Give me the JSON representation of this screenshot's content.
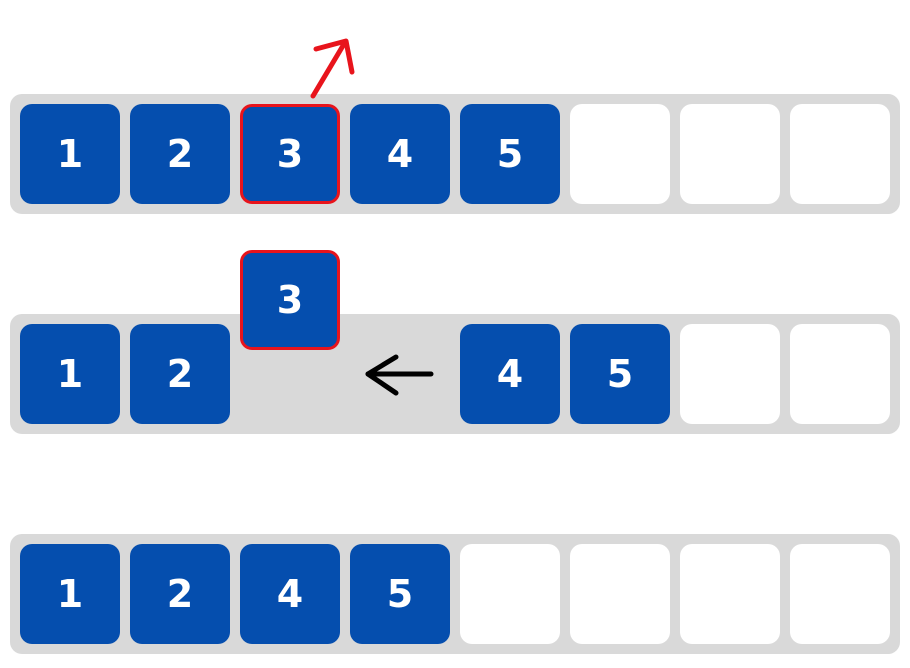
{
  "colors": {
    "track": "#d9d9d9",
    "item": "#054eae",
    "empty_slot": "#ffffff",
    "item_text": "#ffffff",
    "highlight": "#e8141c",
    "arrow": "#000000"
  },
  "rows": [
    {
      "slots": [
        "1",
        "2",
        "3",
        "4",
        "5",
        "",
        "",
        ""
      ],
      "selected_slot": 2,
      "icon": "remove-arrow-icon"
    },
    {
      "slots": [
        "1",
        "2",
        null,
        null,
        "4",
        "5",
        "",
        ""
      ],
      "lifted_item": "3",
      "icon": "shift-left-arrow-icon"
    },
    {
      "slots": [
        "1",
        "2",
        "4",
        "5",
        "",
        "",
        "",
        ""
      ]
    }
  ]
}
